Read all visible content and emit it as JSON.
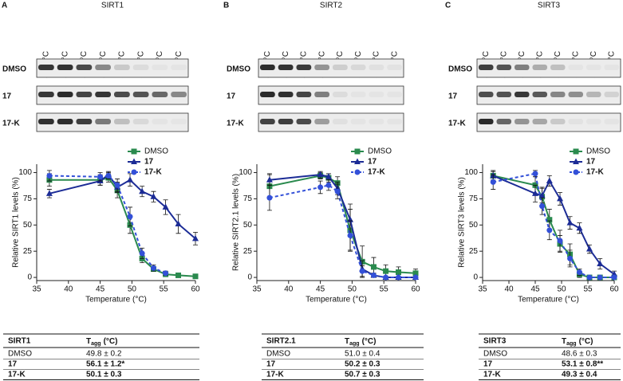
{
  "panels": [
    {
      "letter": "A",
      "title": "SIRT1",
      "temperatures": [
        "45.0 °C",
        "46.3 °C",
        "47.7 °C",
        "49.7 °C",
        "51.6 °C",
        "53.4 °C",
        "55.3 °C",
        "57.3 °C"
      ],
      "blot_labels": [
        "DMSO",
        "17",
        "17-K"
      ],
      "table": {
        "header": {
          "protein": "SIRT1",
          "symbol": "T",
          "subscript": "agg",
          "unit": "(°C)"
        },
        "rows": [
          [
            "DMSO",
            "49.8 ± 0.2"
          ],
          [
            "17",
            "56.1 ± 1.2*"
          ],
          [
            "17-K",
            "50.1 ± 0.3"
          ]
        ]
      }
    },
    {
      "letter": "B",
      "title": "SIRT2",
      "temperatures": [
        "45.0 °C",
        "46.3 °C",
        "47.7 °C",
        "49.7 °C",
        "51.6 °C",
        "53.4 °C",
        "55.3 °C",
        "57.3 °C"
      ],
      "blot_labels": [
        "DMSO",
        "17",
        "17-K"
      ],
      "table": {
        "header": {
          "protein": "SIRT2.1",
          "symbol": "T",
          "subscript": "agg",
          "unit": "(°C)"
        },
        "rows": [
          [
            "DMSO",
            "51.0 ± 0.4"
          ],
          [
            "17",
            "50.2 ± 0.3"
          ],
          [
            "17-K",
            "50.7 ± 0.3"
          ]
        ]
      }
    },
    {
      "letter": "C",
      "title": "SIRT3",
      "temperatures": [
        "45.0 °C",
        "46.3 °C",
        "47.7 °C",
        "49.7 °C",
        "51.6 °C",
        "53.4 °C",
        "55.3 °C",
        "57.3 °C"
      ],
      "blot_labels": [
        "DMSO",
        "17",
        "17-K"
      ],
      "table": {
        "header": {
          "protein": "SIRT3",
          "symbol": "T",
          "subscript": "agg",
          "unit": "(°C)"
        },
        "rows": [
          [
            "DMSO",
            "48.6 ± 0.3"
          ],
          [
            "17",
            "53.1 ± 0.8**"
          ],
          [
            "17-K",
            "49.3 ± 0.4"
          ]
        ]
      }
    }
  ],
  "chart_data": [
    {
      "type": "line",
      "y_label": "Relative SIRT1 levels (%)",
      "x_label": "Temperature (°C)",
      "x": [
        37,
        45,
        46.3,
        47.7,
        49.7,
        51.6,
        53.4,
        55.3,
        57.3,
        60
      ],
      "xlim": [
        35,
        60
      ],
      "xticks": [
        35,
        40,
        45,
        50,
        55,
        60
      ],
      "ylim": [
        -3,
        108
      ],
      "yticks": [
        0,
        25,
        50,
        75,
        100
      ],
      "legend": "upper right",
      "series": [
        {
          "name": "DMSO",
          "color": "#2a8a4e",
          "dashed": false,
          "marker": "square",
          "values": [
            93,
            93,
            95,
            83,
            50,
            18,
            8,
            3,
            2,
            1
          ],
          "errors": [
            6,
            5,
            4,
            7,
            8,
            4,
            2,
            1,
            1,
            1
          ]
        },
        {
          "name": "17",
          "color": "#1c2c96",
          "dashed": false,
          "marker": "triangle",
          "values": [
            80,
            92,
            98,
            86,
            93,
            82,
            77,
            67,
            51,
            37
          ],
          "errors": [
            4,
            4,
            3,
            5,
            6,
            5,
            5,
            7,
            9,
            6
          ]
        },
        {
          "name": "17-K",
          "color": "#3350d8",
          "dashed": true,
          "marker": "circle",
          "values": [
            97,
            96,
            97,
            88,
            58,
            23,
            9,
            4,
            null,
            null
          ],
          "errors": [
            5,
            4,
            3,
            6,
            9,
            5,
            3,
            2,
            null,
            null
          ]
        }
      ]
    },
    {
      "type": "line",
      "y_label": "Relative SIRT2.1 levels (%)",
      "x_label": "Temperature (°C)",
      "x": [
        37,
        45,
        46.3,
        47.7,
        49.7,
        51.6,
        53.4,
        55.3,
        57.3,
        60
      ],
      "xlim": [
        35,
        60
      ],
      "xticks": [
        35,
        40,
        45,
        50,
        55,
        60
      ],
      "ylim": [
        -3,
        108
      ],
      "yticks": [
        0,
        25,
        50,
        75,
        100
      ],
      "legend": "upper right",
      "series": [
        {
          "name": "DMSO",
          "color": "#2a8a4e",
          "dashed": false,
          "marker": "square",
          "values": [
            87,
            97,
            95,
            90,
            45,
            15,
            10,
            6,
            5,
            4
          ],
          "errors": [
            12,
            3,
            4,
            6,
            20,
            15,
            9,
            6,
            5,
            4
          ]
        },
        {
          "name": "17",
          "color": "#1c2c96",
          "dashed": false,
          "marker": "triangle",
          "values": [
            93,
            98,
            96,
            85,
            55,
            8,
            2,
            0,
            0,
            0
          ],
          "errors": [
            5,
            3,
            3,
            6,
            15,
            8,
            2,
            1,
            1,
            1
          ]
        },
        {
          "name": "17-K",
          "color": "#3350d8",
          "dashed": true,
          "marker": "circle",
          "values": [
            76,
            86,
            88,
            82,
            40,
            6,
            2,
            0,
            0,
            0
          ],
          "errors": [
            12,
            6,
            5,
            7,
            14,
            5,
            2,
            1,
            1,
            1
          ]
        }
      ]
    },
    {
      "type": "line",
      "y_label": "Relative SIRT3 levels (%)",
      "x_label": "Temperature (°C)",
      "x": [
        37,
        45,
        46.3,
        47.7,
        49.7,
        51.6,
        53.4,
        55.3,
        57.3,
        60
      ],
      "xlim": [
        35,
        60
      ],
      "xticks": [
        35,
        40,
        45,
        50,
        55,
        60
      ],
      "ylim": [
        -3,
        108
      ],
      "yticks": [
        0,
        25,
        50,
        75,
        100
      ],
      "legend": "upper right",
      "series": [
        {
          "name": "DMSO",
          "color": "#2a8a4e",
          "dashed": false,
          "marker": "square",
          "values": [
            97,
            88,
            77,
            55,
            32,
            22,
            3,
            0,
            0,
            0
          ],
          "errors": [
            4,
            8,
            9,
            10,
            8,
            10,
            3,
            1,
            1,
            1
          ]
        },
        {
          "name": "17",
          "color": "#1c2c96",
          "dashed": false,
          "marker": "triangle",
          "values": [
            97,
            80,
            78,
            92,
            75,
            52,
            47,
            27,
            13,
            3
          ],
          "errors": [
            5,
            8,
            7,
            5,
            6,
            6,
            5,
            4,
            5,
            3
          ]
        },
        {
          "name": "17-K",
          "color": "#3350d8",
          "dashed": true,
          "marker": "circle",
          "values": [
            91,
            99,
            68,
            45,
            35,
            18,
            5,
            0,
            0,
            0
          ],
          "errors": [
            7,
            3,
            8,
            9,
            10,
            8,
            3,
            1,
            1,
            1
          ]
        }
      ]
    }
  ]
}
